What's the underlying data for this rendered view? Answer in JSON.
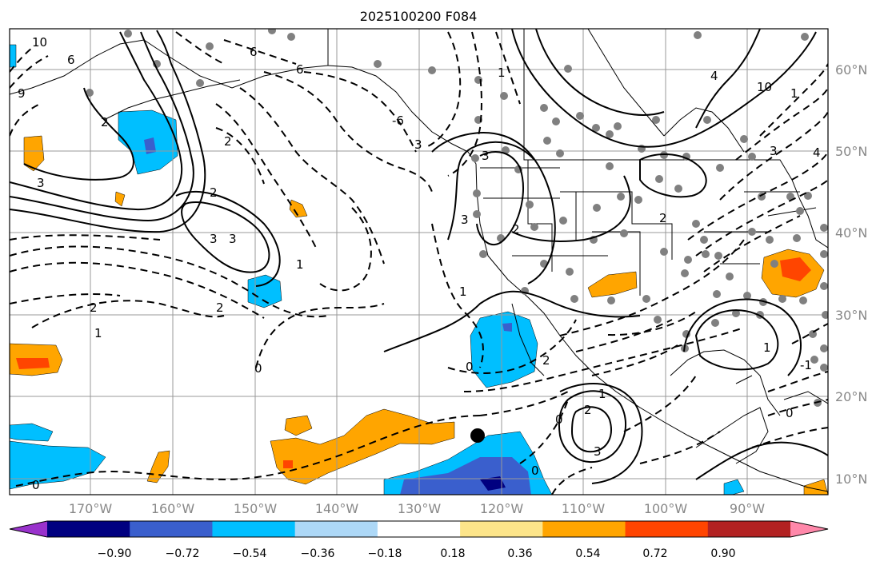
{
  "title": "2025100200 F084",
  "map": {
    "lon_range": [
      -180,
      -80
    ],
    "lat_range": [
      8,
      65
    ],
    "longitude_labels": [
      "170°W",
      "160°W",
      "150°W",
      "140°W",
      "130°W",
      "120°W",
      "110°W",
      "100°W",
      "90°W"
    ],
    "latitude_labels": [
      "60°N",
      "50°N",
      "40°N",
      "30°N",
      "20°N",
      "10°N"
    ],
    "contour_labels": [
      "10",
      "6",
      "6",
      "9",
      "2",
      "3",
      "2",
      "3",
      "3",
      "3",
      "2",
      "2",
      "1",
      "2",
      "1",
      "0",
      "0",
      "0",
      "3",
      "6",
      "-6",
      "2",
      "3",
      "1",
      "2",
      "1",
      "0",
      "0",
      "1",
      "2",
      "3",
      "0",
      "-1",
      "3",
      "4",
      "10",
      "2",
      "1",
      "1",
      "4"
    ],
    "marker_note": "black dot near 123°W 15°N"
  },
  "colorbar": {
    "tick_labels": [
      "−0.90",
      "−0.72",
      "−0.54",
      "−0.36",
      "−0.18",
      "0.18",
      "0.36",
      "0.54",
      "0.72",
      "0.90"
    ],
    "bins": [
      {
        "color": "#9932cc"
      },
      {
        "color": "#000080"
      },
      {
        "color": "#3a5fcd"
      },
      {
        "color": "#00bfff"
      },
      {
        "color": "#add8f7"
      },
      {
        "color": "#ffffff"
      },
      {
        "color": "#fde58a"
      },
      {
        "color": "#ffa500"
      },
      {
        "color": "#ff4500"
      },
      {
        "color": "#b22222"
      },
      {
        "color": "#ff88aa"
      }
    ]
  }
}
